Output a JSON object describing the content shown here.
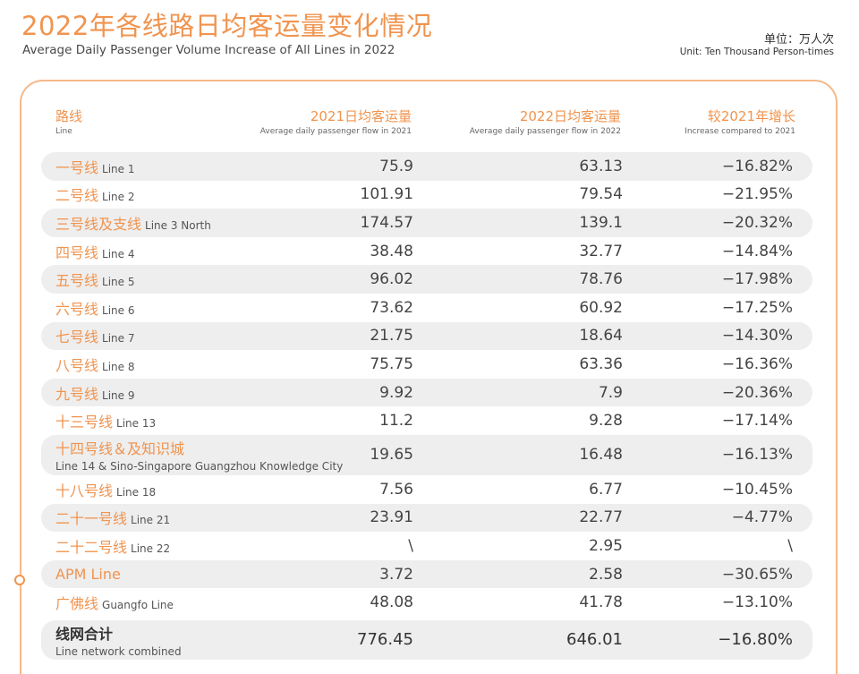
{
  "header": {
    "title_cn": "2022年各线路日均客运量变化情况",
    "title_en": "Average Daily Passenger Volume Increase of All Lines in 2022",
    "unit_cn": "单位：万人次",
    "unit_en": "Unit: Ten Thousand Person-times"
  },
  "columns": [
    {
      "cn": "路线",
      "en": "Line"
    },
    {
      "cn": "2021日均客运量",
      "en": "Average daily passenger flow in 2021"
    },
    {
      "cn": "2022日均客运量",
      "en": "Average daily passenger flow in 2022"
    },
    {
      "cn": "较2021年增长",
      "en": "Increase compared to 2021"
    }
  ],
  "rows": [
    {
      "cn": "一号线",
      "en": "Line 1",
      "v2021": "75.9",
      "v2022": "63.13",
      "change": "−16.82%"
    },
    {
      "cn": "二号线",
      "en": "Line 2",
      "v2021": "101.91",
      "v2022": "79.54",
      "change": "−21.95%"
    },
    {
      "cn": "三号线及支线",
      "en": "Line 3 North",
      "v2021": "174.57",
      "v2022": "139.1",
      "change": "−20.32%"
    },
    {
      "cn": "四号线",
      "en": "Line 4",
      "v2021": "38.48",
      "v2022": "32.77",
      "change": "−14.84%"
    },
    {
      "cn": "五号线",
      "en": "Line 5",
      "v2021": "96.02",
      "v2022": "78.76",
      "change": "−17.98%"
    },
    {
      "cn": "六号线",
      "en": "Line 6",
      "v2021": "73.62",
      "v2022": "60.92",
      "change": "−17.25%"
    },
    {
      "cn": "七号线",
      "en": "Line 7",
      "v2021": "21.75",
      "v2022": "18.64",
      "change": "−14.30%"
    },
    {
      "cn": "八号线",
      "en": "Line 8",
      "v2021": "75.75",
      "v2022": "63.36",
      "change": "−16.36%"
    },
    {
      "cn": "九号线",
      "en": "Line 9",
      "v2021": "9.92",
      "v2022": "7.9",
      "change": "−20.36%"
    },
    {
      "cn": "十三号线",
      "en": "Line 13",
      "v2021": "11.2",
      "v2022": "9.28",
      "change": "−17.14%"
    },
    {
      "cn": "十四号线＆及知识城",
      "en": "Line 14 & Sino-Singapore Guangzhou Knowledge City",
      "v2021": "19.65",
      "v2022": "16.48",
      "change": "−16.13%"
    },
    {
      "cn": "十八号线",
      "en": "Line 18",
      "v2021": "7.56",
      "v2022": "6.77",
      "change": "−10.45%"
    },
    {
      "cn": "二十一号线",
      "en": "Line 21",
      "v2021": "23.91",
      "v2022": "22.77",
      "change": "−4.77%"
    },
    {
      "cn": "二十二号线",
      "en": "Line 22",
      "v2021": "\\",
      "v2022": "2.95",
      "change": "\\"
    },
    {
      "cn": "APM Line",
      "en": "",
      "v2021": "3.72",
      "v2022": "2.58",
      "change": "−30.65%"
    },
    {
      "cn": "广佛线",
      "en": "Guangfo Line",
      "v2021": "48.08",
      "v2022": "41.78",
      "change": "−13.10%"
    }
  ],
  "total": {
    "cn": "线网合计",
    "en": "Line network combined",
    "v2021": "776.45",
    "v2022": "646.01",
    "change": "−16.80%"
  },
  "colors": {
    "accent": "#f0944f",
    "frame": "#f5b88a",
    "stripe": "#eeeeee"
  }
}
